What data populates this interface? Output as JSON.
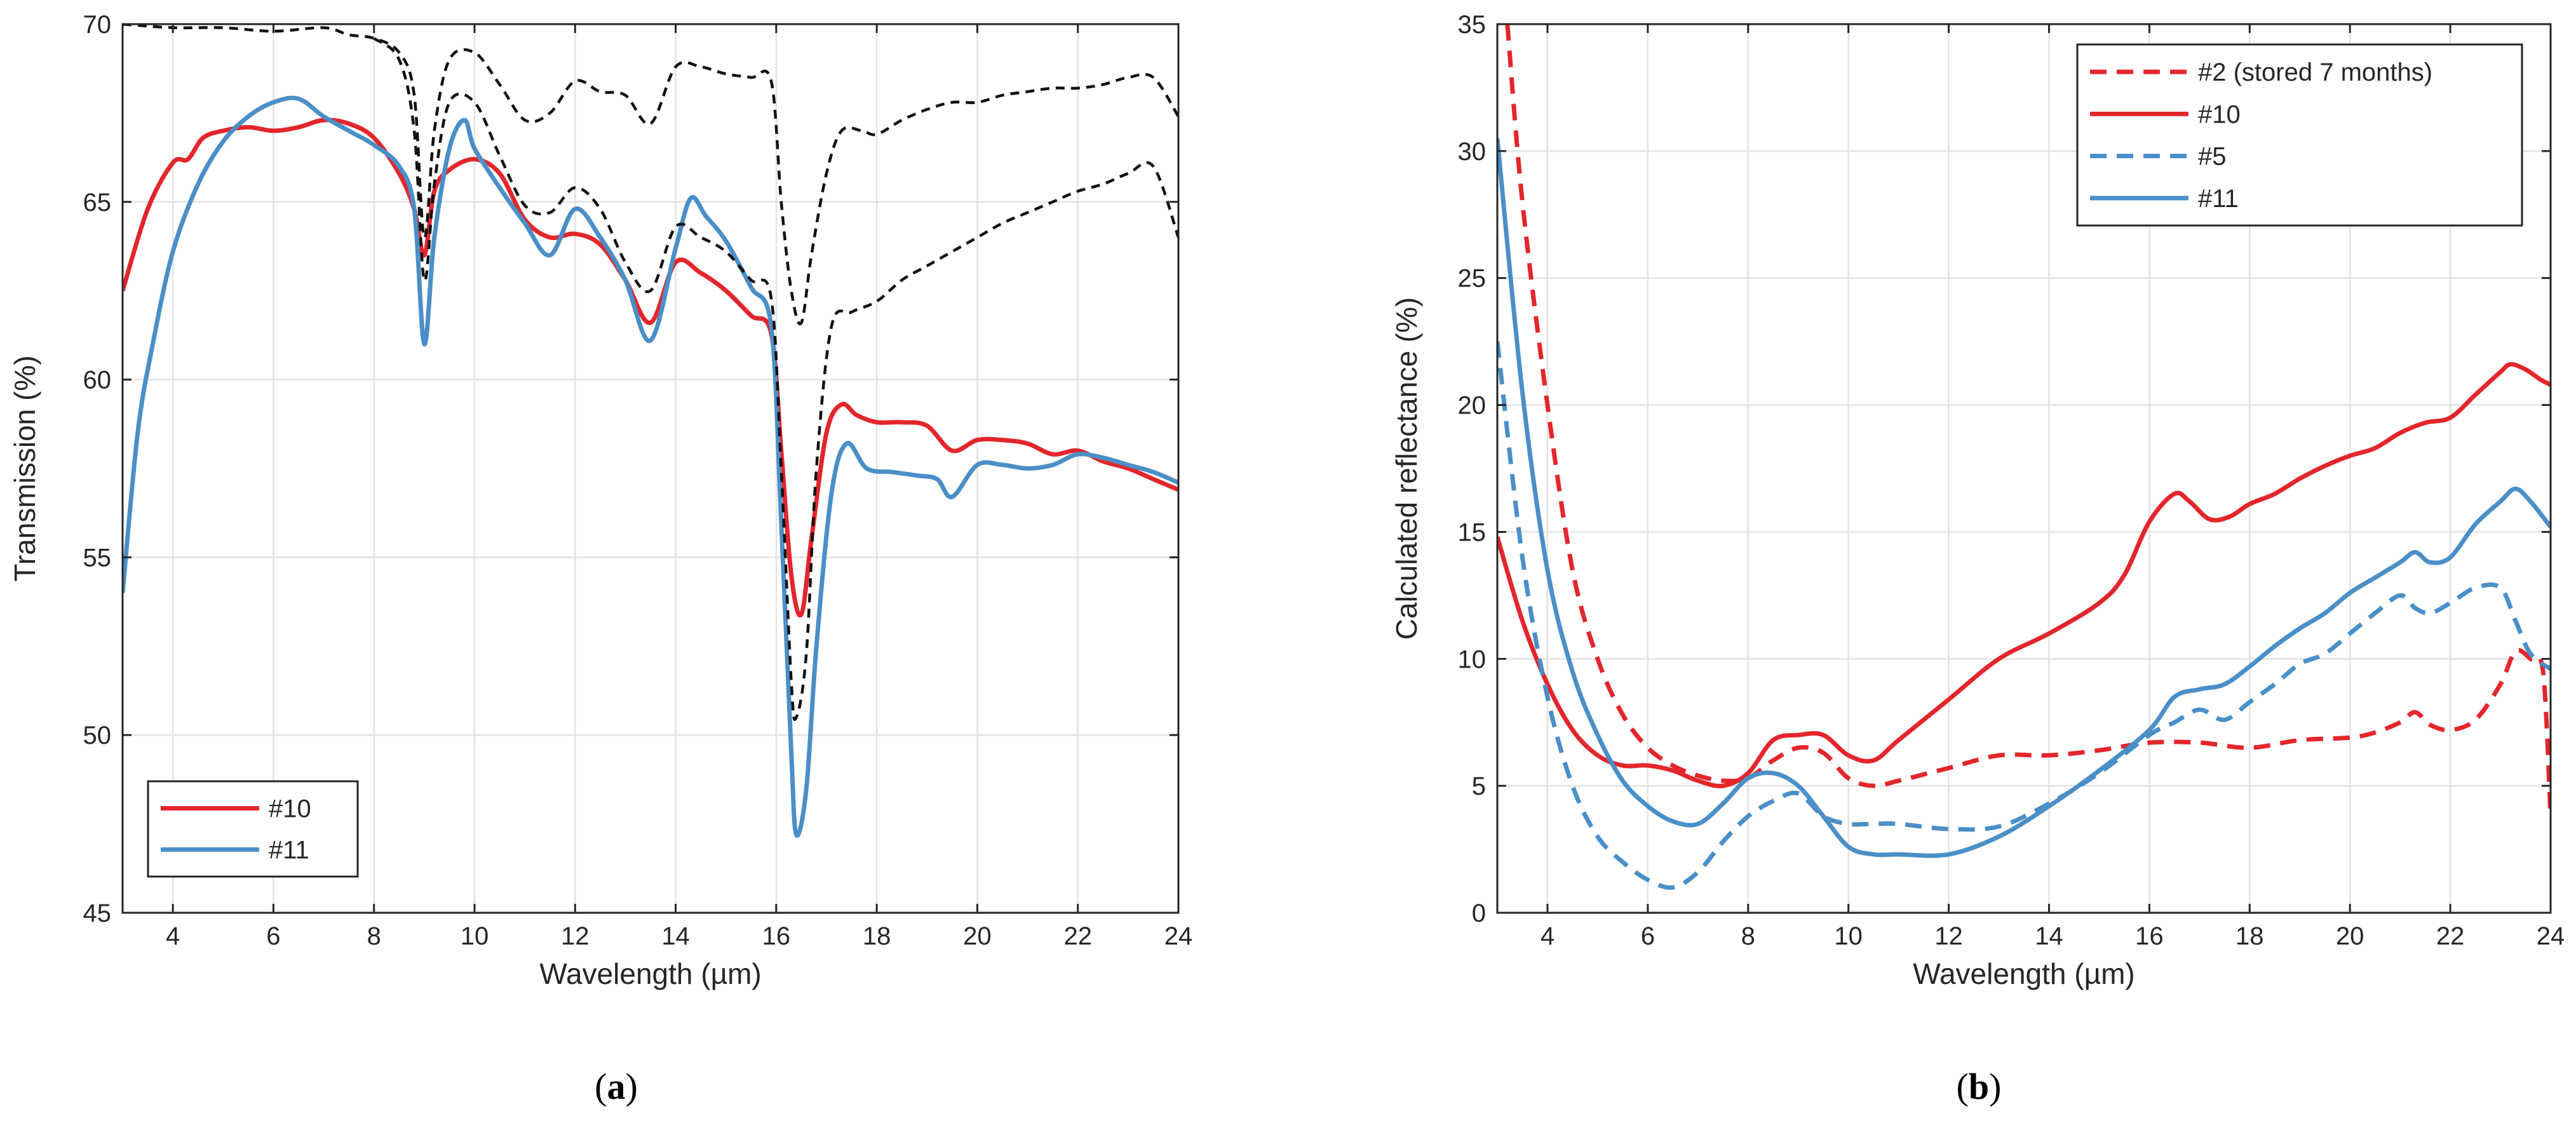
{
  "chart_data": [
    {
      "type": "line",
      "panel_label": "a",
      "xlabel": "Wavelength (µm)",
      "ylabel": "Transmission (%)",
      "xlim": [
        3,
        24
      ],
      "ylim": [
        45,
        70
      ],
      "xticks": [
        4,
        6,
        8,
        10,
        12,
        14,
        16,
        18,
        20,
        22,
        24
      ],
      "yticks": [
        45,
        50,
        55,
        60,
        65,
        70
      ],
      "grid": true,
      "legend": {
        "placement": "bottom-left",
        "entries": [
          "#10",
          "#11"
        ]
      },
      "series": [
        {
          "name": "#10",
          "color": "#e3262c",
          "dash": "solid",
          "in_legend": true,
          "x": [
            3,
            3.5,
            4,
            4.3,
            4.6,
            5,
            5.5,
            6,
            6.5,
            7,
            7.5,
            8,
            8.5,
            8.8,
            9,
            9.2,
            9.5,
            10,
            10.5,
            11,
            11.5,
            12,
            12.5,
            13,
            13.5,
            14,
            14.5,
            15,
            15.5,
            15.9,
            16.1,
            16.3,
            16.5,
            16.7,
            17,
            17.3,
            17.6,
            18,
            18.5,
            19,
            19.5,
            20,
            20.5,
            21,
            21.5,
            22,
            22.5,
            23,
            23.5,
            24
          ],
          "y": [
            62.5,
            64.8,
            66.1,
            66.2,
            66.8,
            67.0,
            67.1,
            67.0,
            67.1,
            67.3,
            67.2,
            66.8,
            65.8,
            64.8,
            63.5,
            65.3,
            65.9,
            66.2,
            65.8,
            64.5,
            64.0,
            64.1,
            63.8,
            62.8,
            61.6,
            63.3,
            63.0,
            62.5,
            61.8,
            61.3,
            58.0,
            54.5,
            53.4,
            55.5,
            58.5,
            59.3,
            59.0,
            58.8,
            58.8,
            58.7,
            58.0,
            58.3,
            58.3,
            58.2,
            57.9,
            58.0,
            57.7,
            57.5,
            57.2,
            56.9
          ]
        },
        {
          "name": "#11",
          "color": "#4a8fc7",
          "dash": "solid",
          "in_legend": true,
          "x": [
            3,
            3.3,
            3.6,
            4,
            4.5,
            5,
            5.5,
            6,
            6.5,
            7,
            7.5,
            8,
            8.5,
            8.8,
            9,
            9.2,
            9.5,
            9.8,
            10,
            10.5,
            11,
            11.5,
            12,
            12.5,
            13,
            13.5,
            14,
            14.3,
            14.6,
            15,
            15.5,
            15.9,
            16.1,
            16.3,
            16.4,
            16.6,
            16.8,
            17.1,
            17.4,
            17.8,
            18.3,
            18.8,
            19.2,
            19.5,
            20,
            20.5,
            21,
            21.5,
            22,
            22.5,
            23,
            23.5,
            24
          ],
          "y": [
            54.0,
            58.5,
            61.0,
            63.6,
            65.5,
            66.7,
            67.4,
            67.8,
            67.9,
            67.4,
            67.0,
            66.6,
            66.0,
            64.8,
            61.0,
            64.0,
            66.5,
            67.3,
            66.5,
            65.4,
            64.4,
            63.5,
            64.8,
            64.0,
            62.8,
            61.1,
            63.7,
            65.1,
            64.6,
            63.9,
            62.6,
            61.5,
            56.0,
            49.5,
            47.2,
            48.5,
            52.5,
            56.8,
            58.2,
            57.5,
            57.4,
            57.3,
            57.2,
            56.7,
            57.6,
            57.6,
            57.5,
            57.6,
            57.9,
            57.8,
            57.6,
            57.4,
            57.1
          ]
        },
        {
          "name": "reference (upper dashed)",
          "color": "#111111",
          "dash": "dashed",
          "in_legend": false,
          "x": [
            3,
            4,
            5,
            6,
            7,
            7.5,
            8,
            8.5,
            8.8,
            9,
            9.2,
            9.5,
            10,
            10.5,
            11,
            11.5,
            12,
            12.5,
            13,
            13.5,
            14,
            14.5,
            15,
            15.5,
            15.9,
            16.1,
            16.3,
            16.5,
            16.7,
            17,
            17.3,
            17.7,
            18,
            18.5,
            19,
            19.5,
            20,
            20.5,
            21,
            21.5,
            22,
            22.5,
            23,
            23.5,
            24
          ],
          "y": [
            70.0,
            69.9,
            69.9,
            69.8,
            69.9,
            69.7,
            69.6,
            69.2,
            68.0,
            64.0,
            67.0,
            69.0,
            69.2,
            68.3,
            67.3,
            67.5,
            68.4,
            68.1,
            68.0,
            67.2,
            68.8,
            68.8,
            68.6,
            68.5,
            68.4,
            65.0,
            62.5,
            61.6,
            63.5,
            65.8,
            67.0,
            67.0,
            66.9,
            67.3,
            67.6,
            67.8,
            67.8,
            68.0,
            68.1,
            68.2,
            68.2,
            68.3,
            68.5,
            68.5,
            67.4
          ]
        },
        {
          "name": "reference (lower dashed)",
          "color": "#111111",
          "dash": "dashed",
          "in_legend": false,
          "x": [
            8,
            8.5,
            8.8,
            9,
            9.2,
            9.5,
            10,
            10.5,
            11,
            11.5,
            12,
            12.5,
            13,
            13.5,
            14,
            14.5,
            15,
            15.5,
            15.9,
            16.1,
            16.3,
            16.4,
            16.6,
            16.8,
            17.1,
            17.5,
            18,
            18.5,
            19,
            19.5,
            20,
            20.5,
            21,
            21.5,
            22,
            22.5,
            23,
            23.5,
            24
          ],
          "y": [
            69.6,
            69.0,
            67.0,
            62.8,
            65.5,
            67.8,
            67.8,
            66.3,
            64.9,
            64.7,
            65.4,
            64.8,
            63.3,
            62.5,
            64.3,
            64.0,
            63.6,
            62.8,
            62.3,
            57.5,
            51.5,
            50.5,
            52.3,
            57.5,
            61.5,
            61.9,
            62.2,
            62.8,
            63.2,
            63.6,
            64.0,
            64.4,
            64.7,
            65.0,
            65.3,
            65.5,
            65.8,
            66.0,
            64.0
          ]
        }
      ]
    },
    {
      "type": "line",
      "panel_label": "b",
      "xlabel": "Wavelength (µm)",
      "ylabel": "Calculated reflectance (%)",
      "xlim": [
        3,
        24
      ],
      "ylim": [
        0,
        35
      ],
      "xticks": [
        4,
        6,
        8,
        10,
        12,
        14,
        16,
        18,
        20,
        22,
        24
      ],
      "yticks": [
        0,
        5,
        10,
        15,
        20,
        25,
        30,
        35
      ],
      "grid": true,
      "legend": {
        "placement": "top-right",
        "entries": [
          "#2 (stored 7 months)",
          "#10",
          "#5",
          "#11"
        ]
      },
      "series": [
        {
          "name": "#2 (stored 7 months)",
          "color": "#e3262c",
          "dash": "dashed",
          "in_legend": true,
          "x": [
            3.2,
            3.5,
            4,
            4.5,
            5,
            5.5,
            6,
            6.5,
            7,
            7.5,
            8,
            8.5,
            9,
            9.5,
            10,
            10.5,
            11,
            12,
            13,
            14,
            15,
            16,
            17,
            18,
            19,
            20,
            20.5,
            21,
            21.3,
            21.6,
            22,
            22.5,
            23,
            23.3,
            23.6,
            23.85,
            24
          ],
          "y": [
            35.0,
            28.0,
            20.0,
            13.5,
            10.0,
            7.8,
            6.5,
            5.8,
            5.4,
            5.2,
            5.3,
            6.0,
            6.5,
            6.3,
            5.3,
            5.0,
            5.2,
            5.7,
            6.2,
            6.2,
            6.4,
            6.7,
            6.7,
            6.5,
            6.8,
            6.9,
            7.1,
            7.5,
            7.9,
            7.4,
            7.2,
            7.6,
            9.0,
            10.3,
            10.0,
            9.5,
            3.8
          ]
        },
        {
          "name": "#10",
          "color": "#e3262c",
          "dash": "solid",
          "in_legend": true,
          "x": [
            3,
            3.5,
            4,
            4.5,
            5,
            5.5,
            6,
            6.5,
            7,
            7.5,
            8,
            8.5,
            9,
            9.5,
            10,
            10.5,
            11,
            12,
            13,
            14,
            15,
            15.5,
            16,
            16.5,
            16.8,
            17.2,
            17.6,
            18,
            18.5,
            19,
            19.5,
            20,
            20.5,
            21,
            21.5,
            22,
            22.5,
            23,
            23.2,
            23.5,
            23.8,
            24
          ],
          "y": [
            14.8,
            11.5,
            9.0,
            7.2,
            6.2,
            5.8,
            5.8,
            5.6,
            5.2,
            5.0,
            5.5,
            6.8,
            7.0,
            7.0,
            6.2,
            6.0,
            6.8,
            8.4,
            10.0,
            11.0,
            12.2,
            13.3,
            15.4,
            16.5,
            16.2,
            15.5,
            15.6,
            16.1,
            16.5,
            17.1,
            17.6,
            18.0,
            18.3,
            18.9,
            19.3,
            19.5,
            20.4,
            21.3,
            21.6,
            21.4,
            21.0,
            20.8
          ]
        },
        {
          "name": "#5",
          "color": "#4a8fc7",
          "dash": "dashed",
          "in_legend": true,
          "x": [
            3,
            3.5,
            4,
            4.5,
            5,
            5.5,
            6,
            6.5,
            7,
            7.5,
            8,
            8.5,
            9,
            9.5,
            10,
            10.5,
            11,
            12,
            13,
            14,
            15,
            16,
            16.5,
            17,
            17.5,
            18,
            18.5,
            19,
            19.5,
            20,
            20.5,
            21,
            21.3,
            21.6,
            22,
            22.5,
            23,
            23.3,
            23.6,
            24
          ],
          "y": [
            22.5,
            14.0,
            8.5,
            5.0,
            3.0,
            2.0,
            1.3,
            1.0,
            1.6,
            2.8,
            3.8,
            4.4,
            4.7,
            3.8,
            3.5,
            3.5,
            3.5,
            3.3,
            3.4,
            4.3,
            5.5,
            7.0,
            7.5,
            8.0,
            7.6,
            8.3,
            9.0,
            9.8,
            10.2,
            11.0,
            11.8,
            12.5,
            12.0,
            11.8,
            12.2,
            12.8,
            12.8,
            11.5,
            10.2,
            9.6
          ]
        },
        {
          "name": "#11",
          "color": "#4a8fc7",
          "dash": "solid",
          "in_legend": true,
          "x": [
            3,
            3.5,
            4,
            4.5,
            5,
            5.5,
            6,
            6.5,
            7,
            7.5,
            8,
            8.5,
            9,
            9.5,
            10,
            10.5,
            11,
            12,
            13,
            14,
            15,
            16,
            16.5,
            17,
            17.5,
            18,
            18.5,
            19,
            19.5,
            20,
            20.5,
            21,
            21.3,
            21.6,
            22,
            22.5,
            23,
            23.3,
            23.6,
            24
          ],
          "y": [
            30.5,
            20.5,
            13.5,
            9.5,
            7.0,
            5.2,
            4.2,
            3.6,
            3.5,
            4.3,
            5.3,
            5.5,
            5.0,
            3.8,
            2.6,
            2.3,
            2.3,
            2.3,
            3.0,
            4.2,
            5.6,
            7.2,
            8.5,
            8.8,
            9.0,
            9.7,
            10.5,
            11.2,
            11.8,
            12.6,
            13.2,
            13.8,
            14.2,
            13.8,
            14.0,
            15.3,
            16.2,
            16.7,
            16.2,
            15.2
          ]
        }
      ]
    }
  ],
  "captions": [
    {
      "open": "(",
      "label": "a",
      "close": ")"
    },
    {
      "open": "(",
      "label": "b",
      "close": ")"
    }
  ]
}
